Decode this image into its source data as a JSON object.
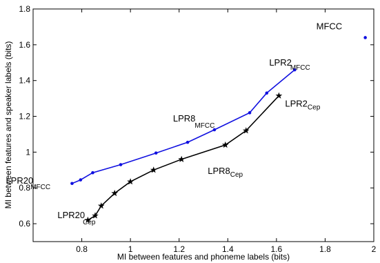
{
  "chart_data": {
    "type": "line",
    "title": "",
    "xlabel": "MI between features and phoneme labels (bits)",
    "ylabel": "MI between features and speaker labels (bits)",
    "xlim": [
      0.6,
      2.0
    ],
    "ylim": [
      0.5,
      1.8
    ],
    "xticks": [
      "0.8",
      "1",
      "1.2",
      "1.4",
      "1.6",
      "1.8",
      "2"
    ],
    "xtick_values": [
      0.8,
      1.0,
      1.2,
      1.4,
      1.6,
      1.8,
      2.0
    ],
    "yticks": [
      "0.6",
      "0.8",
      "1",
      "1.2",
      "1.4",
      "1.6",
      "1.8"
    ],
    "ytick_values": [
      0.6,
      0.8,
      1.0,
      1.2,
      1.4,
      1.6,
      1.8
    ],
    "grid": false,
    "series": [
      {
        "marker": "dot",
        "color": "#1010e0",
        "x": [
          0.76,
          0.795,
          0.845,
          0.96,
          1.105,
          1.235,
          1.345,
          1.49,
          1.56,
          1.675
        ],
        "y": [
          0.825,
          0.845,
          0.885,
          0.93,
          0.995,
          1.055,
          1.125,
          1.22,
          1.33,
          1.46
        ]
      },
      {
        "marker": "star",
        "color": "#000000",
        "x": [
          0.825,
          0.855,
          0.88,
          0.935,
          1.0,
          1.095,
          1.21,
          1.39,
          1.475,
          1.61
        ],
        "y": [
          0.62,
          0.645,
          0.7,
          0.77,
          0.835,
          0.9,
          0.96,
          1.04,
          1.12,
          1.315
        ]
      },
      {
        "marker": "dot",
        "color": "#1010e0",
        "x": [
          1.965
        ],
        "y": [
          1.64
        ]
      }
    ],
    "annotations": [
      {
        "main": "MFCC",
        "sub": "",
        "x": 1.965,
        "y": 1.64
      },
      {
        "main": "LPR2",
        "sub": "MFCC",
        "x": 1.675,
        "y": 1.46
      },
      {
        "main": "LPR8",
        "sub": "MFCC",
        "x": 1.345,
        "y": 1.125
      },
      {
        "main": "LPR20",
        "sub": "MFCC",
        "x": 0.76,
        "y": 0.825
      },
      {
        "main": "LPR2",
        "sub": "Cep",
        "x": 1.61,
        "y": 1.315
      },
      {
        "main": "LPR8",
        "sub": "Cep",
        "x": 1.21,
        "y": 0.96
      },
      {
        "main": "LPR20",
        "sub": "Cep",
        "x": 0.825,
        "y": 0.62
      }
    ]
  }
}
